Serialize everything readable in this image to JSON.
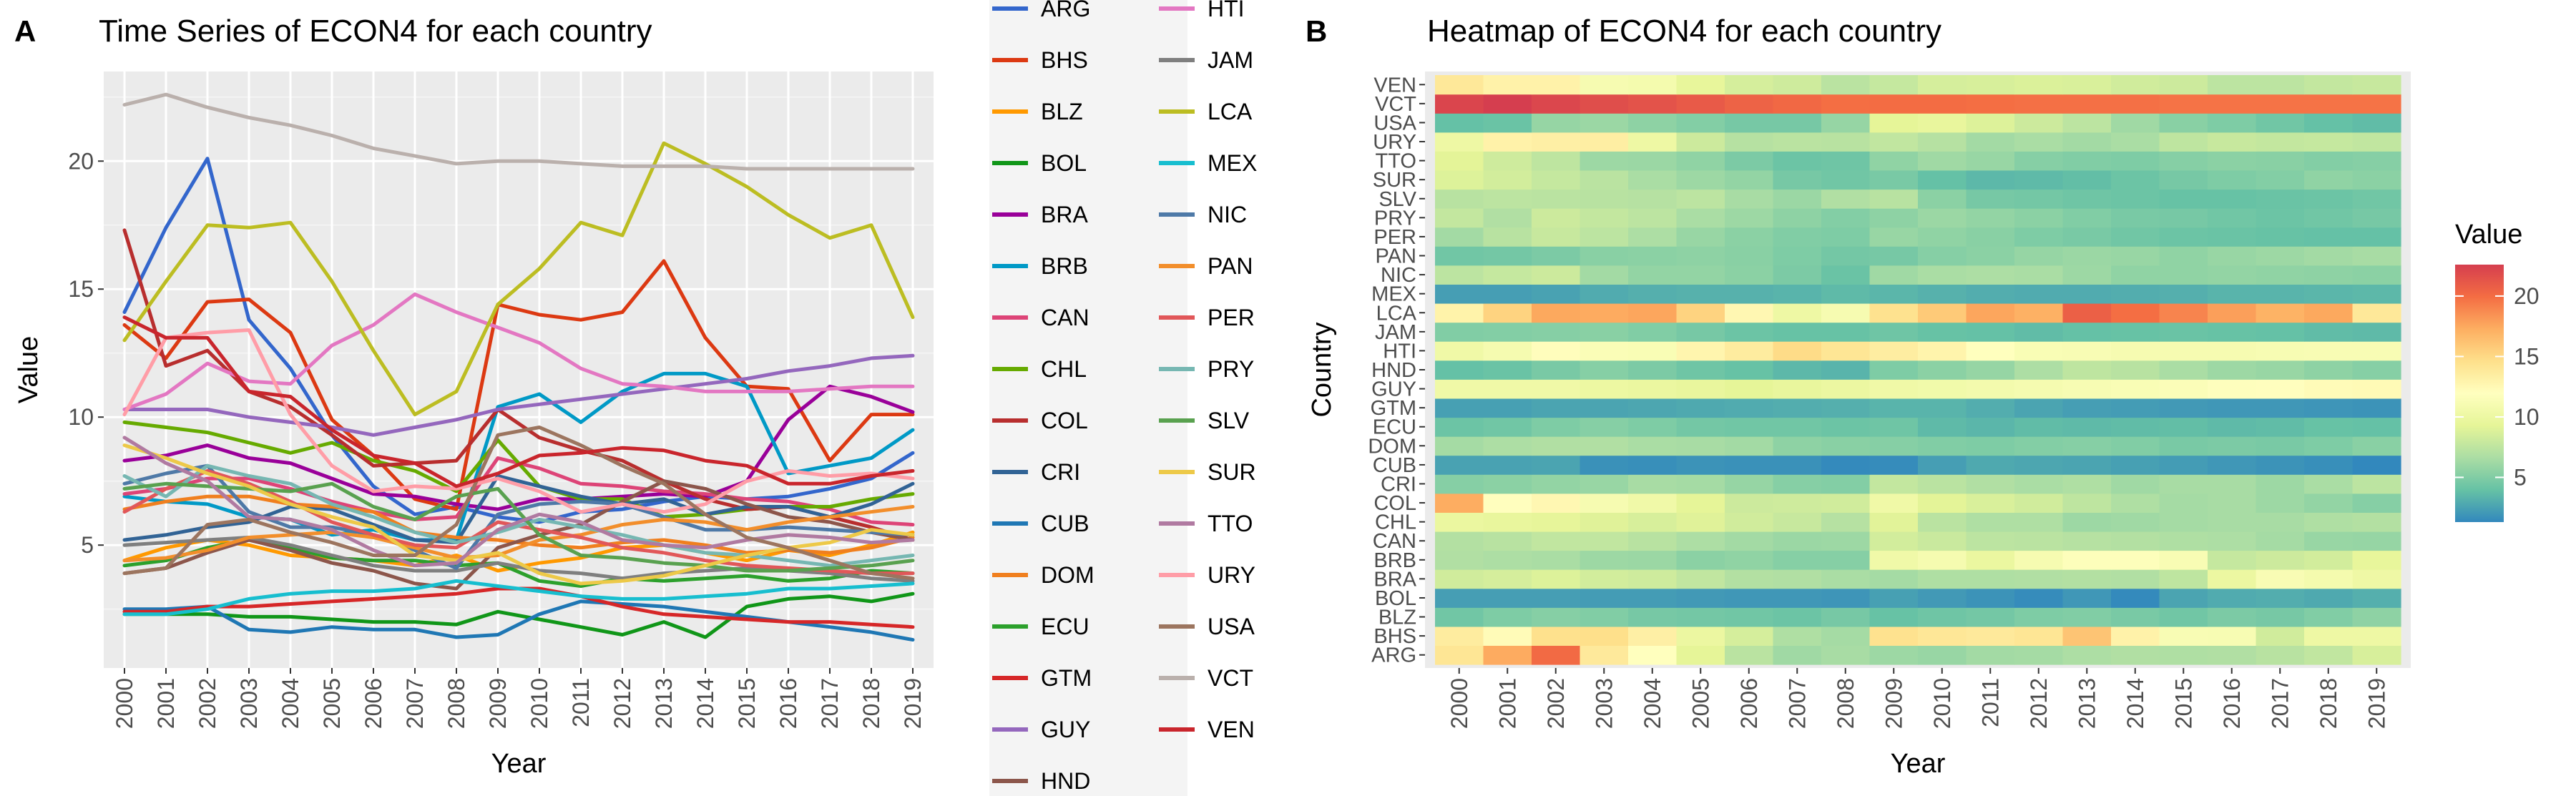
{
  "figure": {
    "panel_a": {
      "letter": "A"
    },
    "panel_b": {
      "letter": "B"
    }
  },
  "chart_data": [
    {
      "type": "line",
      "title": "Time Series of ECON4 for each country",
      "xlabel": "Year",
      "ylabel": "Value",
      "x": [
        2000,
        2001,
        2002,
        2003,
        2004,
        2005,
        2006,
        2007,
        2008,
        2009,
        2010,
        2011,
        2012,
        2013,
        2014,
        2015,
        2016,
        2017,
        2018,
        2019
      ],
      "xlim": [
        2000,
        2019
      ],
      "ylim": [
        0.2,
        23.5
      ],
      "yticks": [
        5,
        10,
        15,
        20
      ],
      "grid": true,
      "legend_position": "right",
      "series": [
        {
          "name": "ARG",
          "color": "#3366cc",
          "values": [
            14.1,
            17.4,
            20.1,
            13.8,
            11.9,
            9.3,
            7.3,
            6.2,
            6.5,
            6.1,
            5.9,
            6.3,
            6.4,
            6.7,
            6.9,
            6.8,
            6.9,
            7.2,
            7.6,
            8.6
          ]
        },
        {
          "name": "BHS",
          "color": "#dc3912",
          "values": [
            13.6,
            12.3,
            14.5,
            14.6,
            13.3,
            9.9,
            8.5,
            6.8,
            6.4,
            14.4,
            14.0,
            13.8,
            14.1,
            16.1,
            13.1,
            11.2,
            11.1,
            8.3,
            10.1,
            10.1
          ]
        },
        {
          "name": "BLZ",
          "color": "#ff9900",
          "values": [
            4.4,
            4.9,
            5.2,
            5.0,
            4.6,
            4.5,
            4.4,
            4.2,
            4.6,
            4.0,
            4.3,
            4.5,
            4.9,
            5.0,
            4.7,
            4.4,
            4.8,
            4.6,
            5.0,
            5.5
          ]
        },
        {
          "name": "BOL",
          "color": "#109618",
          "values": [
            2.3,
            2.3,
            2.3,
            2.2,
            2.2,
            2.1,
            2.0,
            2.0,
            1.9,
            2.4,
            2.1,
            1.8,
            1.5,
            2.0,
            1.4,
            2.6,
            2.9,
            3.0,
            2.8,
            3.1
          ]
        },
        {
          "name": "BRA",
          "color": "#990099",
          "values": [
            8.3,
            8.5,
            8.9,
            8.4,
            8.2,
            7.6,
            7.0,
            6.9,
            6.6,
            6.4,
            6.8,
            6.8,
            6.9,
            7.0,
            6.9,
            7.5,
            9.9,
            11.2,
            10.8,
            10.2
          ]
        },
        {
          "name": "BRB",
          "color": "#0099c6",
          "values": [
            6.9,
            6.7,
            6.6,
            6.1,
            6.0,
            5.4,
            5.6,
            5.2,
            5.2,
            10.4,
            10.9,
            9.8,
            11.0,
            11.7,
            11.7,
            11.2,
            7.8,
            8.1,
            8.4,
            9.5
          ]
        },
        {
          "name": "CAN",
          "color": "#dd4477",
          "values": [
            7.0,
            7.2,
            7.6,
            7.6,
            7.2,
            6.7,
            6.3,
            6.0,
            6.1,
            8.4,
            8.0,
            7.4,
            7.3,
            7.1,
            7.0,
            6.8,
            6.7,
            6.4,
            5.9,
            5.8
          ]
        },
        {
          "name": "CHL",
          "color": "#66aa00",
          "values": [
            9.8,
            9.6,
            9.4,
            9.0,
            8.6,
            9.0,
            8.3,
            7.9,
            7.1,
            9.1,
            7.3,
            6.8,
            6.8,
            6.1,
            6.2,
            6.4,
            6.5,
            6.5,
            6.8,
            7.0
          ]
        },
        {
          "name": "COL",
          "color": "#b82e2e",
          "values": [
            17.3,
            12.0,
            12.6,
            11.0,
            10.4,
            9.3,
            8.1,
            8.2,
            8.3,
            10.3,
            9.2,
            8.7,
            8.3,
            7.5,
            6.8,
            6.4,
            6.5,
            6.1,
            5.7,
            5.2
          ]
        },
        {
          "name": "CRI",
          "color": "#316395",
          "values": [
            5.2,
            5.4,
            5.7,
            5.9,
            6.5,
            6.4,
            5.8,
            5.2,
            5.1,
            7.7,
            7.3,
            6.9,
            6.6,
            6.8,
            6.2,
            6.5,
            6.5,
            6.1,
            6.6,
            7.4
          ]
        },
        {
          "name": "CUB",
          "color": "#1f77b4",
          "values": [
            2.5,
            2.5,
            2.6,
            1.7,
            1.6,
            1.8,
            1.7,
            1.7,
            1.4,
            1.5,
            2.3,
            2.8,
            2.7,
            2.6,
            2.4,
            2.2,
            2.0,
            1.8,
            1.6,
            1.3
          ]
        },
        {
          "name": "DOM",
          "color": "#f07f1e",
          "values": [
            6.4,
            6.7,
            6.9,
            6.9,
            6.6,
            6.5,
            6.3,
            5.5,
            5.3,
            5.2,
            5.0,
            4.9,
            5.1,
            5.2,
            5.0,
            4.7,
            4.8,
            4.7,
            4.9,
            5.3
          ]
        },
        {
          "name": "ECU",
          "color": "#2ca02c",
          "values": [
            4.2,
            4.4,
            4.9,
            5.2,
            4.9,
            4.5,
            4.4,
            4.4,
            4.2,
            4.3,
            3.6,
            3.4,
            3.7,
            3.6,
            3.7,
            3.8,
            3.6,
            3.7,
            4.0,
            3.9
          ]
        },
        {
          "name": "GTM",
          "color": "#d62728",
          "values": [
            2.4,
            2.4,
            2.6,
            2.6,
            2.7,
            2.8,
            2.9,
            3.0,
            3.1,
            3.3,
            3.3,
            3.0,
            2.6,
            2.3,
            2.2,
            2.1,
            2.0,
            2.0,
            1.9,
            1.8
          ]
        },
        {
          "name": "GUY",
          "color": "#9467bd",
          "values": [
            10.3,
            10.3,
            10.3,
            10.0,
            9.8,
            9.6,
            9.3,
            9.6,
            9.9,
            10.3,
            10.5,
            10.7,
            10.9,
            11.1,
            11.3,
            11.5,
            11.8,
            12.0,
            12.3,
            12.4
          ]
        },
        {
          "name": "HND",
          "color": "#8c564b",
          "values": [
            3.9,
            4.1,
            4.7,
            5.2,
            4.8,
            4.3,
            4.0,
            3.5,
            3.3,
            4.9,
            5.4,
            5.8,
            6.7,
            7.5,
            7.2,
            6.6,
            6.1,
            5.9,
            5.5,
            5.2
          ]
        },
        {
          "name": "HTI",
          "color": "#e377c2",
          "values": [
            10.3,
            10.9,
            12.1,
            11.4,
            11.3,
            12.8,
            13.6,
            14.8,
            14.1,
            13.5,
            12.9,
            11.9,
            11.3,
            11.2,
            11.0,
            11.0,
            11.0,
            11.1,
            11.2,
            11.2
          ]
        },
        {
          "name": "JAM",
          "color": "#7f7f7f",
          "values": [
            5.0,
            5.1,
            5.2,
            5.3,
            5.0,
            4.6,
            4.2,
            4.0,
            4.0,
            4.3,
            4.0,
            3.9,
            3.7,
            3.9,
            4.0,
            4.1,
            4.0,
            3.9,
            3.7,
            3.6
          ]
        },
        {
          "name": "LCA",
          "color": "#bcbd22",
          "values": [
            13.0,
            15.3,
            17.5,
            17.4,
            17.6,
            15.3,
            12.6,
            10.1,
            11.0,
            14.4,
            15.8,
            17.6,
            17.1,
            20.7,
            19.9,
            19.0,
            17.9,
            17.0,
            17.5,
            13.9
          ]
        },
        {
          "name": "MEX",
          "color": "#17becf",
          "values": [
            2.3,
            2.3,
            2.5,
            2.9,
            3.1,
            3.2,
            3.2,
            3.3,
            3.6,
            3.4,
            3.2,
            3.0,
            2.9,
            2.9,
            3.0,
            3.1,
            3.3,
            3.3,
            3.4,
            3.5
          ]
        },
        {
          "name": "NIC",
          "color": "#4e79a7",
          "values": [
            7.4,
            7.8,
            8.1,
            6.3,
            5.7,
            5.7,
            5.4,
            4.8,
            4.1,
            6.2,
            6.6,
            6.7,
            6.6,
            6.1,
            5.6,
            5.6,
            5.7,
            5.6,
            5.5,
            5.4
          ]
        },
        {
          "name": "PAN",
          "color": "#f28e2b",
          "values": [
            4.4,
            4.5,
            4.8,
            5.3,
            5.4,
            5.5,
            5.3,
            4.9,
            4.5,
            4.6,
            5.2,
            5.4,
            5.8,
            6.0,
            5.9,
            5.6,
            5.9,
            6.1,
            6.3,
            6.5
          ]
        },
        {
          "name": "PER",
          "color": "#e15759",
          "values": [
            6.3,
            7.2,
            7.9,
            7.4,
            6.7,
            5.9,
            5.4,
            5.0,
            4.9,
            5.9,
            5.6,
            5.3,
            4.9,
            4.7,
            4.4,
            4.2,
            4.1,
            4.0,
            3.9,
            3.9
          ]
        },
        {
          "name": "PRY",
          "color": "#76b7b2",
          "values": [
            7.7,
            6.9,
            8.1,
            7.7,
            7.4,
            6.6,
            6.1,
            5.5,
            5.1,
            5.5,
            6.0,
            5.7,
            5.4,
            5.0,
            4.7,
            4.6,
            4.4,
            4.2,
            4.4,
            4.6
          ]
        },
        {
          "name": "SLV",
          "color": "#59a14f",
          "values": [
            7.2,
            7.4,
            7.3,
            7.2,
            7.1,
            7.4,
            6.5,
            6.0,
            6.9,
            7.2,
            5.4,
            4.6,
            4.5,
            4.3,
            4.2,
            4.0,
            4.0,
            4.1,
            4.2,
            4.4
          ]
        },
        {
          "name": "SUR",
          "color": "#edc948",
          "values": [
            8.9,
            8.4,
            7.8,
            7.3,
            6.6,
            6.1,
            5.7,
            4.6,
            4.4,
            4.7,
            3.9,
            3.5,
            3.6,
            3.8,
            4.2,
            4.6,
            4.9,
            5.1,
            5.6,
            5.4
          ]
        },
        {
          "name": "TTO",
          "color": "#b07aa1",
          "values": [
            9.2,
            8.2,
            7.5,
            6.1,
            6.0,
            5.6,
            4.8,
            4.2,
            4.3,
            5.6,
            6.2,
            5.9,
            5.2,
            5.0,
            4.9,
            5.2,
            5.4,
            5.3,
            5.1,
            5.2
          ]
        },
        {
          "name": "URY",
          "color": "#ff9da7",
          "values": [
            10.1,
            13.1,
            13.3,
            13.4,
            10.1,
            8.1,
            7.1,
            7.3,
            7.2,
            7.6,
            7.1,
            6.3,
            6.6,
            6.3,
            6.6,
            7.5,
            7.9,
            7.7,
            7.8,
            7.6
          ]
        },
        {
          "name": "USA",
          "color": "#9c755f",
          "values": [
            3.9,
            4.1,
            5.8,
            6.0,
            5.5,
            5.1,
            4.6,
            4.6,
            5.8,
            9.3,
            9.6,
            8.9,
            8.1,
            7.4,
            6.2,
            5.3,
            4.9,
            4.4,
            3.9,
            3.7
          ]
        },
        {
          "name": "VCT",
          "color": "#bab0ac",
          "values": [
            22.2,
            22.6,
            22.1,
            21.7,
            21.4,
            21.0,
            20.5,
            20.2,
            19.9,
            20.0,
            20.0,
            19.9,
            19.8,
            19.8,
            19.8,
            19.7,
            19.7,
            19.7,
            19.7,
            19.7
          ]
        },
        {
          "name": "VEN",
          "color": "#c9252c",
          "values": [
            13.9,
            13.1,
            13.1,
            11.0,
            10.8,
            9.5,
            8.5,
            8.2,
            7.3,
            7.8,
            8.5,
            8.6,
            8.8,
            8.7,
            8.3,
            8.1,
            7.4,
            7.4,
            7.7,
            7.9
          ]
        }
      ]
    },
    {
      "type": "heatmap",
      "title": "Heatmap of ECON4 for each country",
      "xlabel": "Year",
      "ylabel": "Country",
      "x": [
        2000,
        2001,
        2002,
        2003,
        2004,
        2005,
        2006,
        2007,
        2008,
        2009,
        2010,
        2011,
        2012,
        2013,
        2014,
        2015,
        2016,
        2017,
        2018,
        2019
      ],
      "rows_series_ref": "uses the same per-country values as the line chart (chart_data[0].series)",
      "row_order_bottom_to_top": [
        "ARG",
        "BHS",
        "BLZ",
        "BOL",
        "BRA",
        "BRB",
        "CAN",
        "CHL",
        "COL",
        "CRI",
        "CUB",
        "DOM",
        "ECU",
        "GTM",
        "GUY",
        "HND",
        "HTI",
        "JAM",
        "LCA",
        "MEX",
        "NIC",
        "PAN",
        "PER",
        "PRY",
        "SLV",
        "SUR",
        "TTO",
        "URY",
        "USA",
        "VCT",
        "VEN"
      ],
      "colorbar": {
        "title": "Value",
        "range": [
          1.3,
          22.6
        ],
        "ticks": [
          5,
          10,
          15,
          20
        ],
        "palette": [
          "#3288bd",
          "#66c2a5",
          "#abdda4",
          "#e6f598",
          "#ffffbf",
          "#fee08b",
          "#fdae61",
          "#f46d43",
          "#d53e4f"
        ]
      }
    }
  ]
}
